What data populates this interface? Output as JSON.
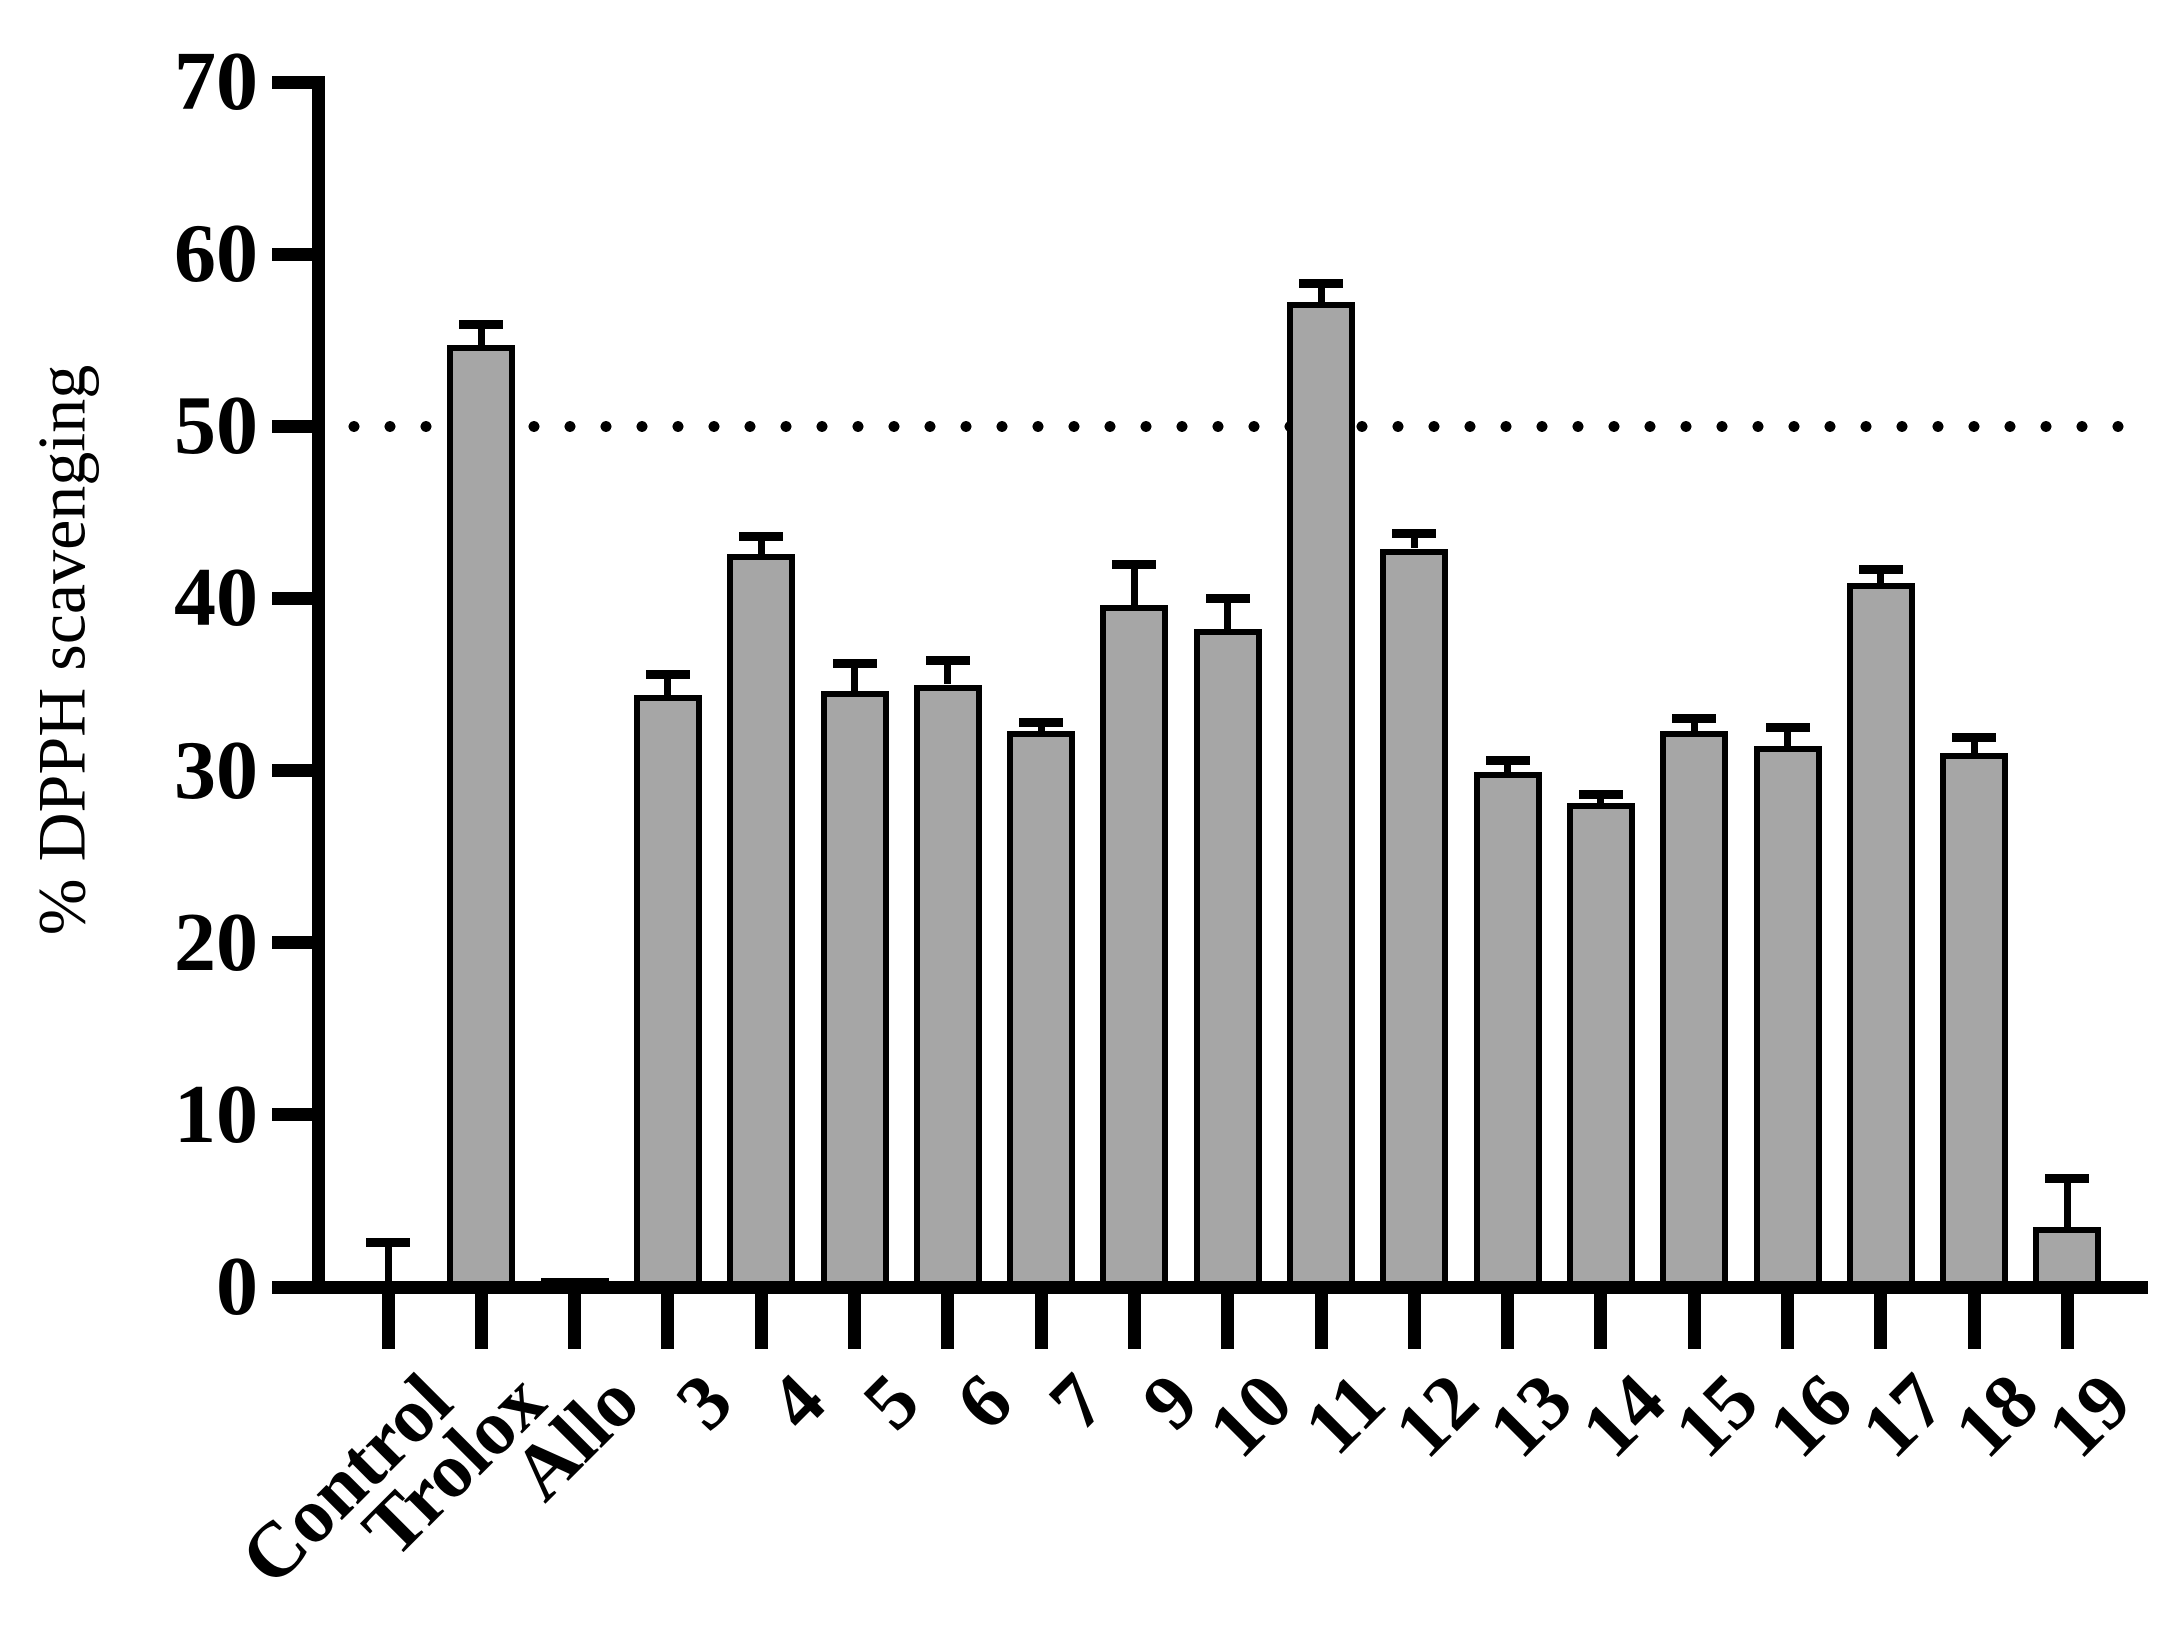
{
  "chart_data": {
    "type": "bar",
    "title": "",
    "ylabel": "% DPPH scavenging",
    "xlabel": "",
    "ylim": [
      0,
      70
    ],
    "yticks": [
      "0",
      "10",
      "20",
      "30",
      "40",
      "50",
      "60",
      "70"
    ],
    "grid": false,
    "legend": "none",
    "reference_line": 50,
    "categories": [
      "Control",
      "Trolox",
      "Allo",
      "3",
      "4",
      "5",
      "6",
      "7",
      "9",
      "10",
      "11",
      "12",
      "13",
      "14",
      "15",
      "16",
      "17",
      "18",
      "19"
    ],
    "series": [
      {
        "name": "% DPPH scavenging",
        "values": [
          0,
          54.7,
          0.5,
          34.4,
          42.6,
          34.6,
          35.0,
          32.3,
          39.6,
          38.2,
          57.2,
          42.9,
          29.9,
          28.1,
          32.3,
          31.4,
          40.9,
          31.0,
          3.5
        ],
        "errors_plus": [
          2.6,
          1.2,
          0,
          1.2,
          1.0,
          1.6,
          1.4,
          0.5,
          2.4,
          1.8,
          1.1,
          0.9,
          0.7,
          0.5,
          0.7,
          1.1,
          0.8,
          0.9,
          2.8
        ]
      }
    ],
    "colors": {
      "bar_fill": "#a6a6a6",
      "bar_border": "#000000",
      "axis": "#000000",
      "background": "#ffffff"
    }
  }
}
